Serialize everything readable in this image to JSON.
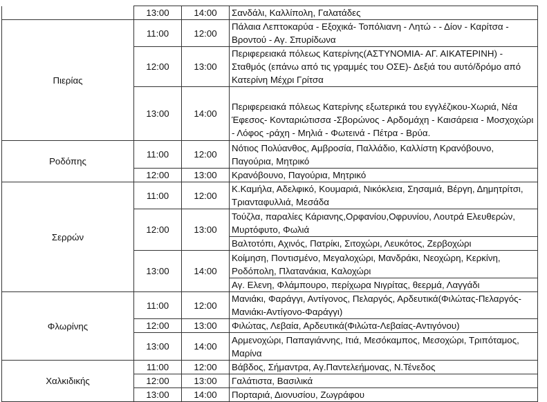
{
  "regions": [
    {
      "name": "",
      "slots": [
        {
          "start": "13:00",
          "end": "14:00",
          "areas": [
            "Σανδάλι, Καλλίπολη, Γαλατάδες"
          ]
        }
      ]
    },
    {
      "name": "Πιερίας",
      "slots": [
        {
          "start": "11:00",
          "end": "12:00",
          "areas": [
            " Πάλαια  Λεπτοκαρύα  -  Εξοχικά- Τοπόλιανη - Λητώ -  -  Δίον  - Καρίτσα  - Βροντού  -  Αγ.  Σπυρίδωνα"
          ]
        },
        {
          "start": "12:00",
          "end": "13:00",
          "areas": [
            "Περιφερειακά  πόλεως  Κατερίνης(ΑΣΤΥΝΟΜΙΑ- ΑΓ. ΑΙΚΑΤΕΡΙΝΗ)  - Σταθμός (επάνω  από τις γραμμές του ΟΣΕ)- Δεξιά   του αυτό/δρόμο από  Κατερίνη Μέχρι  Γρίτσα"
          ]
        },
        {
          "start": "13:00",
          "end": "14:00",
          "areas": [
            "Περιφερειακά  πόλεως  Κατερίνης  εξωτερικά του  εγγλέζικου-Χωριά, Νέα  Έφεσος-  Κονταριώτισσα -Σβορώνος -  Αρδομάχη - Καισάρεια - Μοσχοχώρι - Λόφος  -ράχη - Μηλιά  - Φωτεινά  - Πέτρα  -  Βρύα."
          ]
        }
      ]
    },
    {
      "name": "Ροδόπης",
      "slots": [
        {
          "start": "11:00",
          "end": "12:00",
          "areas": [
            "Νότιος Πολύανθος, Αμβροσία, Παλλάδιο, Καλλίστη Κρανόβουνο, Παγούρια, Μητρικό"
          ]
        },
        {
          "start": "12:00",
          "end": "13:00",
          "areas": [
            "Κρανόβουνο, Παγούρια, Μητρικό"
          ]
        }
      ]
    },
    {
      "name": "Σερρών",
      "slots": [
        {
          "start": "11:00",
          "end": "12:00",
          "areas": [
            "Κ.Καμήλα, Αδελφικό, Κουμαριά, Νικόκλεια, Σησαμιά, Βέργη, Δημητρίτσι, Τριανταφυλλιά, Μεσάδα"
          ]
        },
        {
          "start": "12:00",
          "end": "13:00",
          "areas": [
            "Τούζλα, παραλίες Κάριανης,Ορφανίου,Οφρυνίου, Λουτρά Ελευθερών, Μυρτόφυτο, Φωλιά",
            "Βαλτοτόπι, Αχινός, Πατρίκι, Σιτοχώρι, Λευκότος, Ζερβοχώρι"
          ]
        },
        {
          "start": "13:00",
          "end": "14:00",
          "areas": [
            "Κοίμηση, Ποντισμένο, Μεγαλοχώρι, Μανδράκι, Νεοχώρη, Κερκίνη, Ροδόπολη, Πλατανάκια, Καλοχώρι",
            "Αγ. Ελενη, Φλάμπουρο, περίχωρα Νιγρίτας, θεερμά, Λαγγάδι"
          ]
        }
      ]
    },
    {
      "name": "Φλωρίνης",
      "slots": [
        {
          "start": "11:00",
          "end": "12:00",
          "areas": [
            "Μανιάκι, Φαράγγι, Αντίγονος, Πελαργός, Αρδευτικά(Φιλώτας-Πελαργός-Μανιάκι-Αντίγονο-Φαράγγι)"
          ]
        },
        {
          "start": "12:00",
          "end": "13:00",
          "areas": [
            "Φιλώτας, Λεβαία, Αρδευτικά(Φιλώτα-Λεβαίας-Αντιγόνου)"
          ]
        },
        {
          "start": "13:00",
          "end": "14:00",
          "areas": [
            "Αρμενοχώρι, Παπαγιάννης, Ιτιά, Μεσόκαμπος, Μεσοχώρι, Τριπόταμος, Μαρίνα"
          ]
        }
      ]
    },
    {
      "name": "Χαλκιδικής",
      "slots": [
        {
          "start": "11:00",
          "end": "12:00",
          "areas": [
            "Βάβδος, Σήμαντρα, Αγ.Παντελεήμονας, Ν.Τένεδος"
          ]
        },
        {
          "start": "12:00",
          "end": "13:00",
          "areas": [
            "Γαλάτιστα, Βασιλικά"
          ]
        },
        {
          "start": "13:00",
          "end": "14:00",
          "areas": [
            "Πορταριά, Διονυσίου, Ζωγράφου"
          ]
        }
      ]
    }
  ]
}
